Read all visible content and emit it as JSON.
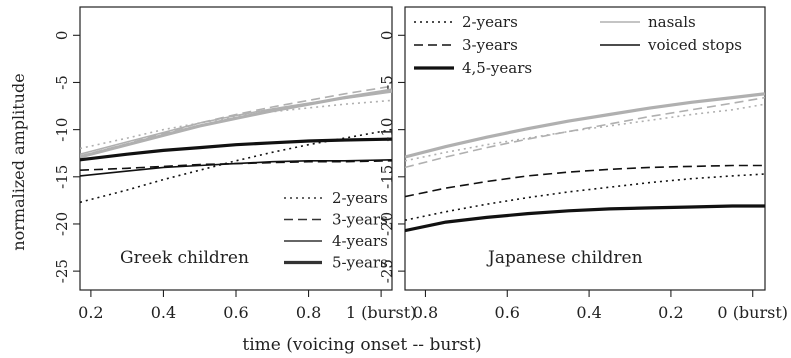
{
  "chart_data": [
    {
      "type": "line",
      "panel_label": "Greek children",
      "ylabel": "normalized amplitude",
      "xlim": [
        0.17,
        1.03
      ],
      "ylim": [
        -27,
        3
      ],
      "x_ticks": [
        0.2,
        0.4,
        0.6,
        0.8,
        1.0
      ],
      "x_tick_labels": [
        "0.2",
        "0.4",
        "0.6",
        "0.8",
        "1 (burst)"
      ],
      "y_ticks": [
        0,
        -5,
        -10,
        -15,
        -20,
        -25
      ],
      "y_tick_labels": [
        "0",
        "-5",
        "-10",
        "-15",
        "-20",
        "-25"
      ],
      "legend": {
        "position": "bottom-right",
        "entries": [
          {
            "label": "2-years",
            "style": "dotted"
          },
          {
            "label": "3-years",
            "style": "dashed"
          },
          {
            "label": "4-years",
            "style": "solid"
          },
          {
            "label": "5-years",
            "style": "thick"
          }
        ]
      },
      "x": [
        0.17,
        0.3,
        0.4,
        0.5,
        0.6,
        0.7,
        0.8,
        0.9,
        1.03
      ],
      "series": [
        {
          "name": "2-years",
          "category": "nasals",
          "style": "dotted",
          "color": "#b0b0b0",
          "values": [
            -12.0,
            -10.9,
            -10.0,
            -9.3,
            -8.6,
            -8.1,
            -7.7,
            -7.3,
            -6.9
          ]
        },
        {
          "name": "3-years",
          "category": "nasals",
          "style": "dashed",
          "color": "#b0b0b0",
          "values": [
            -12.8,
            -11.5,
            -10.4,
            -9.3,
            -8.4,
            -7.6,
            -6.9,
            -6.2,
            -5.4
          ]
        },
        {
          "name": "4-years",
          "category": "nasals",
          "style": "solid",
          "color": "#b0b0b0",
          "values": [
            -12.6,
            -11.3,
            -10.3,
            -9.3,
            -8.5,
            -7.8,
            -7.2,
            -6.7,
            -6.0
          ]
        },
        {
          "name": "5-years",
          "category": "nasals",
          "style": "thick",
          "color": "#b0b0b0",
          "values": [
            -12.9,
            -11.6,
            -10.6,
            -9.6,
            -8.8,
            -8.0,
            -7.3,
            -6.6,
            -5.8
          ]
        },
        {
          "name": "2-years",
          "category": "voiced stops",
          "style": "dotted",
          "color": "#111111",
          "values": [
            -17.7,
            -16.4,
            -15.3,
            -14.3,
            -13.3,
            -12.4,
            -11.6,
            -10.9,
            -10.0
          ]
        },
        {
          "name": "3-years",
          "category": "voiced stops",
          "style": "dashed",
          "color": "#111111",
          "values": [
            -14.3,
            -14.1,
            -13.9,
            -13.7,
            -13.6,
            -13.5,
            -13.4,
            -13.4,
            -13.3
          ]
        },
        {
          "name": "4-years",
          "category": "voiced stops",
          "style": "solid",
          "color": "#111111",
          "values": [
            -14.9,
            -14.4,
            -14.0,
            -13.8,
            -13.6,
            -13.4,
            -13.3,
            -13.3,
            -13.2
          ]
        },
        {
          "name": "5-years",
          "category": "voiced stops",
          "style": "thick",
          "color": "#111111",
          "values": [
            -13.2,
            -12.6,
            -12.2,
            -11.9,
            -11.6,
            -11.4,
            -11.2,
            -11.1,
            -11.0
          ]
        }
      ]
    },
    {
      "type": "line",
      "panel_label": "Japanese children",
      "xlabel": "time (voicing onset -- burst)",
      "xlim": [
        0.85,
        -0.03
      ],
      "ylim": [
        -27,
        3
      ],
      "x_ticks": [
        0.8,
        0.6,
        0.4,
        0.2,
        0.0
      ],
      "x_tick_labels": [
        "0.8",
        "0.6",
        "0.4",
        "0.2",
        "0 (burst)"
      ],
      "y_ticks": [
        0,
        -5,
        -10,
        -15,
        -20,
        -25
      ],
      "y_tick_labels": [
        "0",
        "-5",
        "-10",
        "-15",
        "-20",
        "-25"
      ],
      "legend": {
        "position": "top",
        "entries": [
          {
            "label": "2-years",
            "style": "dotted",
            "color": "#111111"
          },
          {
            "label": "3-years",
            "style": "dashed",
            "color": "#111111"
          },
          {
            "label": "4,5-years",
            "style": "thick",
            "color": "#111111"
          },
          {
            "label": "nasals",
            "style": "solid",
            "color": "#b0b0b0"
          },
          {
            "label": "voiced stops",
            "style": "solid",
            "color": "#111111"
          }
        ]
      },
      "x": [
        0.85,
        0.75,
        0.65,
        0.55,
        0.45,
        0.35,
        0.25,
        0.15,
        0.05,
        -0.03
      ],
      "series": [
        {
          "name": "2-years",
          "category": "nasals",
          "style": "dotted",
          "color": "#b0b0b0",
          "values": [
            -13.3,
            -12.4,
            -11.6,
            -10.9,
            -10.2,
            -9.6,
            -9.0,
            -8.4,
            -7.9,
            -7.3
          ]
        },
        {
          "name": "3-years",
          "category": "nasals",
          "style": "dashed",
          "color": "#b0b0b0",
          "values": [
            -14.0,
            -12.9,
            -11.9,
            -11.0,
            -10.2,
            -9.4,
            -8.6,
            -7.9,
            -7.2,
            -6.6
          ]
        },
        {
          "name": "4,5-years",
          "category": "nasals",
          "style": "thick",
          "color": "#b0b0b0",
          "values": [
            -12.9,
            -11.8,
            -10.8,
            -9.9,
            -9.1,
            -8.4,
            -7.7,
            -7.1,
            -6.6,
            -6.2
          ]
        },
        {
          "name": "2-years",
          "category": "voiced stops",
          "style": "dotted",
          "color": "#111111",
          "values": [
            -19.6,
            -18.7,
            -17.9,
            -17.2,
            -16.6,
            -16.1,
            -15.6,
            -15.2,
            -14.9,
            -14.7
          ]
        },
        {
          "name": "3-years",
          "category": "voiced stops",
          "style": "dashed",
          "color": "#111111",
          "values": [
            -17.1,
            -16.2,
            -15.5,
            -14.9,
            -14.5,
            -14.2,
            -14.0,
            -13.9,
            -13.8,
            -13.8
          ]
        },
        {
          "name": "4,5-years",
          "category": "voiced stops",
          "style": "thick",
          "color": "#111111",
          "values": [
            -20.7,
            -19.8,
            -19.3,
            -18.9,
            -18.6,
            -18.4,
            -18.3,
            -18.2,
            -18.1,
            -18.1
          ]
        }
      ]
    }
  ]
}
